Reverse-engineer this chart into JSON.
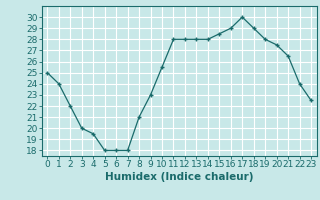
{
  "x": [
    0,
    1,
    2,
    3,
    4,
    5,
    6,
    7,
    8,
    9,
    10,
    11,
    12,
    13,
    14,
    15,
    16,
    17,
    18,
    19,
    20,
    21,
    22,
    23
  ],
  "y": [
    25,
    24,
    22,
    20,
    19.5,
    18,
    18,
    18,
    21,
    23,
    25.5,
    28,
    28,
    28,
    28,
    28.5,
    29,
    30,
    29,
    28,
    27.5,
    26.5,
    24,
    22.5
  ],
  "line_color": "#1a6b6b",
  "marker": "+",
  "bg_color": "#c8e8e8",
  "grid_color": "#ffffff",
  "xlabel": "Humidex (Indice chaleur)",
  "ylim": [
    17.5,
    31
  ],
  "xlim": [
    -0.5,
    23.5
  ],
  "yticks": [
    18,
    19,
    20,
    21,
    22,
    23,
    24,
    25,
    26,
    27,
    28,
    29,
    30
  ],
  "xticks": [
    0,
    1,
    2,
    3,
    4,
    5,
    6,
    7,
    8,
    9,
    10,
    11,
    12,
    13,
    14,
    15,
    16,
    17,
    18,
    19,
    20,
    21,
    22,
    23
  ],
  "tick_label_fontsize": 6.5,
  "xlabel_fontsize": 7.5
}
